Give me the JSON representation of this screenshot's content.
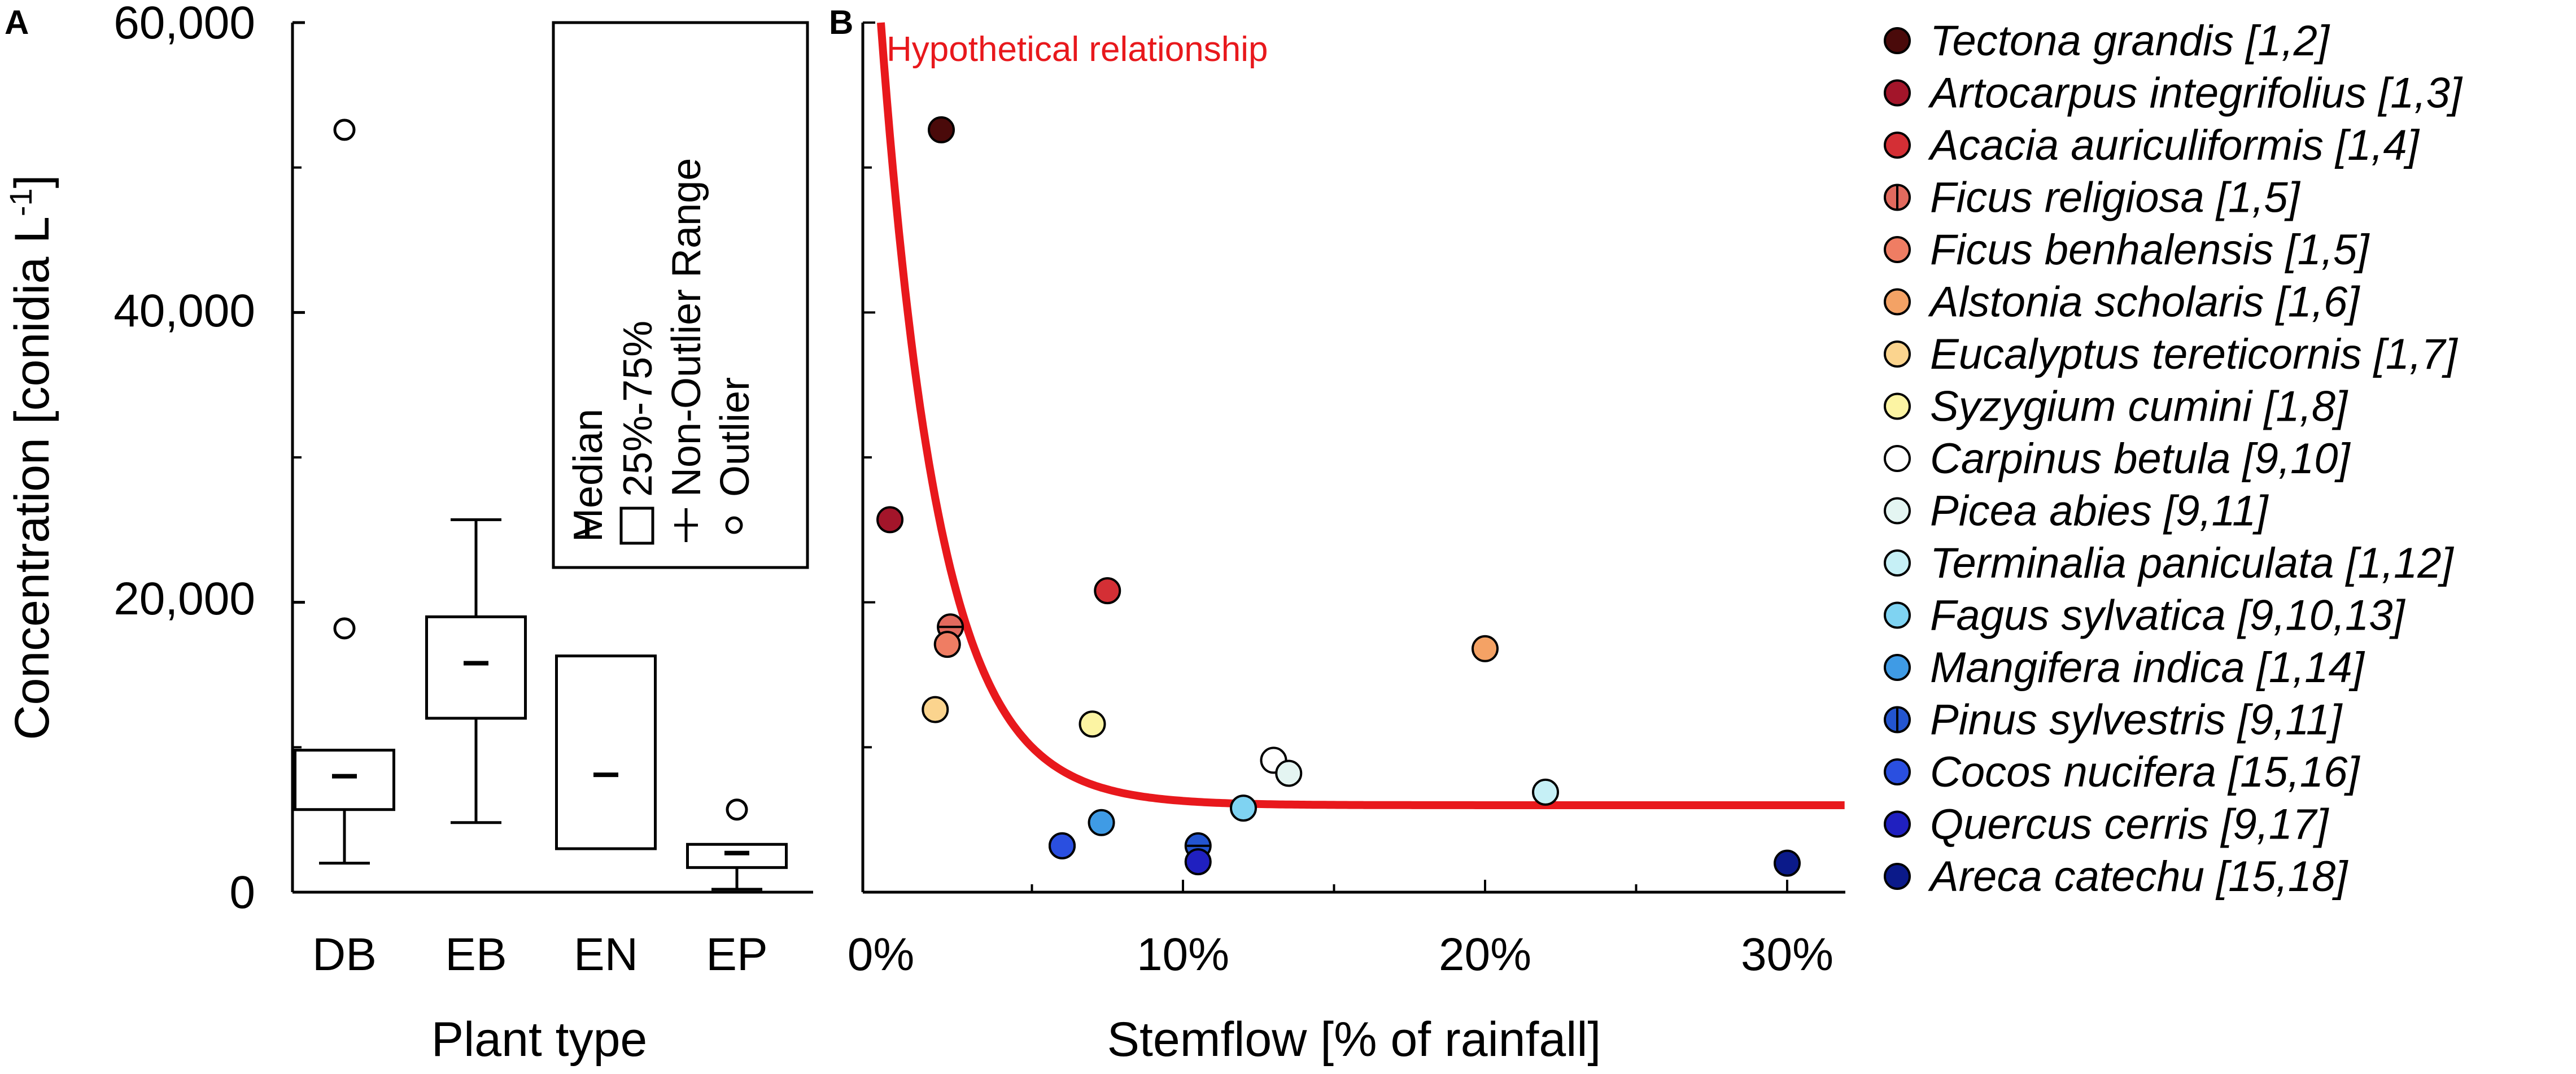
{
  "chart_data": [
    {
      "panel": "A",
      "type": "boxplot",
      "xlabel": "Plant type",
      "ylabel_main": "Concentration [conidia L",
      "ylabel_sup": "-1",
      "ylabel_end": "]",
      "ylim": [
        0,
        60000
      ],
      "yticks": [
        0,
        20000,
        40000,
        60000
      ],
      "ytick_labels": [
        "0",
        "20,000",
        "40,000",
        "60,000"
      ],
      "categories": [
        "DB",
        "EB",
        "EN",
        "EP"
      ],
      "boxes": [
        {
          "category": "DB",
          "whisker_low": 2000,
          "q1": 5700,
          "median": 8000,
          "q3": 9800,
          "whisker_high": 9800,
          "outliers": [
            18200,
            52600
          ]
        },
        {
          "category": "EB",
          "whisker_low": 4800,
          "q1": 12000,
          "median": 15800,
          "q3": 19000,
          "whisker_high": 25700,
          "outliers": []
        },
        {
          "category": "EN",
          "whisker_low": 3000,
          "q1": 3000,
          "median": 8100,
          "q3": 16300,
          "whisker_high": 16300,
          "outliers": []
        },
        {
          "category": "EP",
          "whisker_low": 200,
          "q1": 1700,
          "median": 2700,
          "q3": 3300,
          "whisker_high": 3300,
          "outliers": [
            5700
          ]
        }
      ],
      "legend": {
        "median": "Median",
        "box": "25%-75%",
        "whisker": "Non-Outlier Range",
        "outlier": "Outlier"
      }
    },
    {
      "panel": "B",
      "type": "scatter",
      "xlabel": "Stemflow [% of rainfall]",
      "xlim": [
        0,
        32
      ],
      "xticks": [
        0,
        10,
        20,
        30
      ],
      "xtick_labels": [
        "0%",
        "10%",
        "20%",
        "30%"
      ],
      "ylim": [
        0,
        60000
      ],
      "curve": {
        "label": "Hypothetical relationship",
        "color": "#e8181c",
        "asymptote": 6000,
        "amplitude": 54000,
        "decay": 0.52
      },
      "series": [
        {
          "name": "Tectona grandis [1,2]",
          "color": "#4a0a0a",
          "points": [
            [
              2.0,
              52600
            ]
          ]
        },
        {
          "name": "Artocarpus integrifolius [1,3]",
          "color": "#a3152a",
          "points": [
            [
              0.3,
              25700
            ]
          ]
        },
        {
          "name": "Acacia auriculiformis [1,4]",
          "color": "#d42f35",
          "points": [
            [
              7.5,
              20800
            ]
          ]
        },
        {
          "name": "Ficus religiosa [1,5]",
          "color": "#e26a5e",
          "half": true,
          "points": [
            [
              2.3,
              18300
            ]
          ]
        },
        {
          "name": "Ficus benhalensis [1,5]",
          "color": "#ef7d63",
          "points": [
            [
              2.2,
              17100
            ]
          ]
        },
        {
          "name": "Alstonia scholaris [1,6]",
          "color": "#f4a265",
          "points": [
            [
              20.0,
              16800
            ]
          ]
        },
        {
          "name": "Eucalyptus tereticornis [1,7]",
          "color": "#fbd48e",
          "points": [
            [
              1.8,
              12600
            ]
          ]
        },
        {
          "name": "Syzygium cumini [1,8]",
          "color": "#fcf4a3",
          "points": [
            [
              7.0,
              11600
            ]
          ]
        },
        {
          "name": "Carpinus betula [9,10]",
          "color": "#ffffff",
          "points": [
            [
              13.0,
              9100
            ]
          ]
        },
        {
          "name": "Picea abies [9,11]",
          "color": "#e4f5f2",
          "points": [
            [
              13.5,
              8200
            ]
          ]
        },
        {
          "name": "Terminalia paniculata [1,12]",
          "color": "#c6f0f6",
          "points": [
            [
              22.0,
              6900
            ]
          ]
        },
        {
          "name": "Fagus sylvatica [9,10,13]",
          "color": "#7fd3f2",
          "points": [
            [
              12.0,
              5800
            ]
          ]
        },
        {
          "name": "Mangifera indica [1,14]",
          "color": "#3f9be5",
          "points": [
            [
              7.3,
              4800
            ],
            [
              6.0,
              3200
            ]
          ]
        },
        {
          "name": "Pinus sylvestris [9,11]",
          "color": "#2355d0",
          "half": true,
          "points": [
            [
              10.5,
              3200
            ]
          ]
        },
        {
          "name": "Cocos nucifera [15,16]",
          "color": "#2a4fe0",
          "points": [
            [
              6.0,
              3200
            ]
          ]
        },
        {
          "name": "Quercus cerris [9,17]",
          "color": "#2020c0",
          "points": [
            [
              10.5,
              2100
            ]
          ]
        },
        {
          "name": "Areca catechu [15,18]",
          "color": "#0b1a8a",
          "points": [
            [
              30.0,
              2000
            ]
          ]
        }
      ]
    }
  ]
}
